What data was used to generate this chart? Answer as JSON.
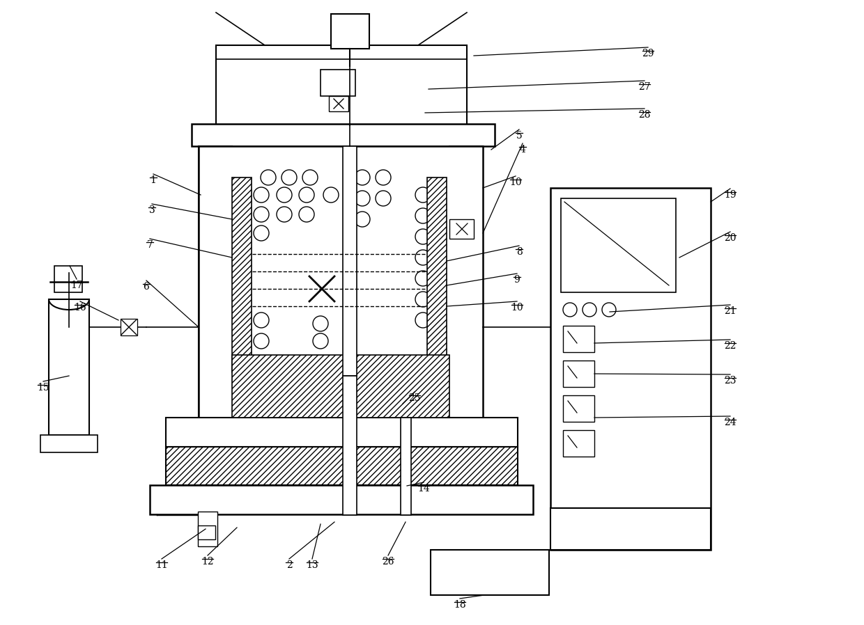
{
  "bg_color": "#ffffff",
  "fig_width": 12.4,
  "fig_height": 8.98,
  "dpi": 100
}
